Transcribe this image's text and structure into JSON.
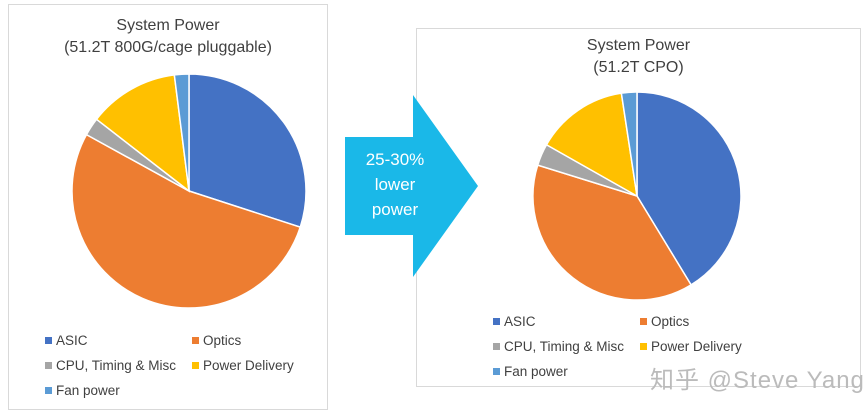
{
  "colors": {
    "ASIC": "#4472c4",
    "Optics": "#ed7d31",
    "CPU, Timing & Misc": "#a5a5a5",
    "Power Delivery": "#ffc000",
    "Fan power": "#5b9bd5",
    "arrow": "#1ab8e8"
  },
  "chart_data": [
    {
      "type": "pie",
      "title": "System Power",
      "subtitle": "(51.2T 800G/cage pluggable)",
      "legend_position": "bottom",
      "categories": [
        "ASIC",
        "Optics",
        "CPU, Timing & Misc",
        "Power Delivery",
        "Fan power"
      ],
      "values": [
        30,
        53,
        2.5,
        12.5,
        2
      ]
    },
    {
      "type": "pie",
      "title": "System Power",
      "subtitle": "(51.2T CPO)",
      "legend_position": "bottom",
      "categories": [
        "ASIC",
        "Optics",
        "CPU, Timing & Misc",
        "Power Delivery",
        "Fan power"
      ],
      "values": [
        41.3,
        38.5,
        3.4,
        14.4,
        2.4
      ]
    }
  ],
  "arrow": {
    "lines": [
      "25-30%",
      "lower",
      "power"
    ]
  },
  "watermark": "知乎 @Steve Yang"
}
